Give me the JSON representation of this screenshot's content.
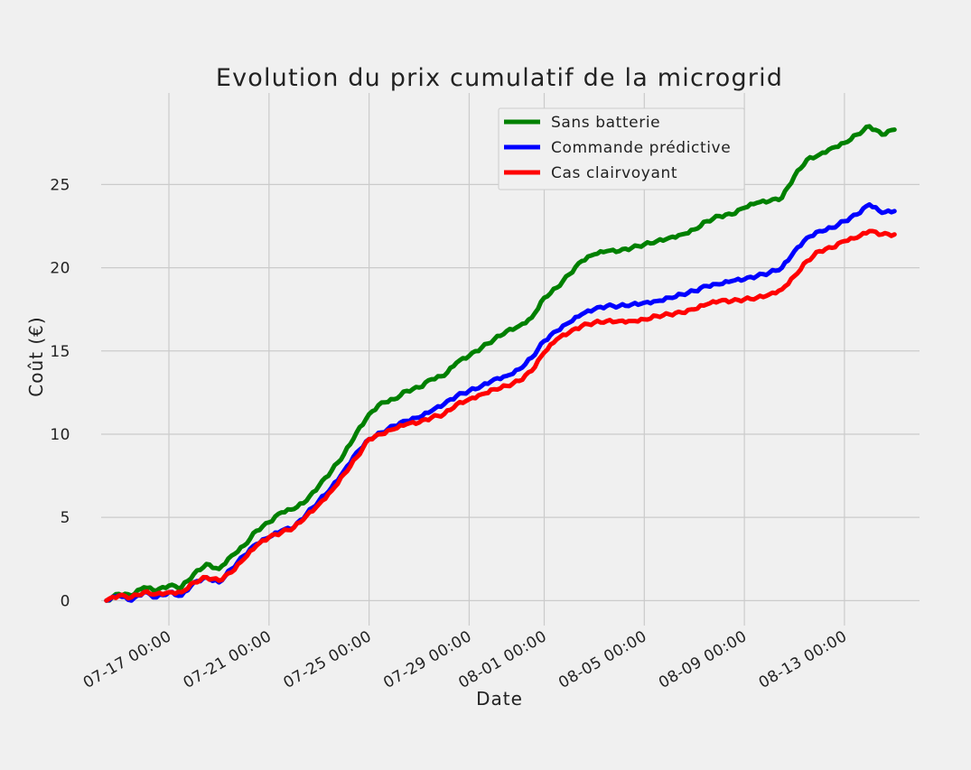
{
  "chart_data": {
    "type": "line",
    "title": "Evolution du prix cumulatif de la microgrid",
    "xlabel": "Date",
    "ylabel": "Coût (€)",
    "x_unit": "date",
    "xlim": [
      "2023-07-14T07:00",
      "2023-08-16T00:00"
    ],
    "ylim": [
      -1.5,
      30.5
    ],
    "yticks": [
      0,
      5,
      10,
      15,
      20,
      25
    ],
    "xticks": [
      {
        "date": "2023-07-17T00:00",
        "label": "07-17 00:00"
      },
      {
        "date": "2023-07-21T00:00",
        "label": "07-21 00:00"
      },
      {
        "date": "2023-07-25T00:00",
        "label": "07-25 00:00"
      },
      {
        "date": "2023-07-29T00:00",
        "label": "07-29 00:00"
      },
      {
        "date": "2023-08-01T00:00",
        "label": "08-01 00:00"
      },
      {
        "date": "2023-08-05T00:00",
        "label": "08-05 00:00"
      },
      {
        "date": "2023-08-09T00:00",
        "label": "08-09 00:00"
      },
      {
        "date": "2023-08-13T00:00",
        "label": "08-13 00:00"
      }
    ],
    "grid": true,
    "legend_position": "top-right",
    "x": [
      "2023-07-14T12:00",
      "2023-07-15T00:00",
      "2023-07-15T12:00",
      "2023-07-16T00:00",
      "2023-07-16T12:00",
      "2023-07-17T00:00",
      "2023-07-17T12:00",
      "2023-07-18T00:00",
      "2023-07-18T12:00",
      "2023-07-19T00:00",
      "2023-07-19T12:00",
      "2023-07-20T00:00",
      "2023-07-20T12:00",
      "2023-07-21T00:00",
      "2023-07-21T12:00",
      "2023-07-22T00:00",
      "2023-07-22T12:00",
      "2023-07-23T00:00",
      "2023-07-23T12:00",
      "2023-07-24T00:00",
      "2023-07-24T12:00",
      "2023-07-25T00:00",
      "2023-07-25T12:00",
      "2023-07-26T00:00",
      "2023-07-26T12:00",
      "2023-07-27T00:00",
      "2023-07-27T12:00",
      "2023-07-28T00:00",
      "2023-07-28T12:00",
      "2023-07-29T00:00",
      "2023-07-29T12:00",
      "2023-07-30T00:00",
      "2023-07-30T12:00",
      "2023-07-31T00:00",
      "2023-07-31T12:00",
      "2023-08-01T00:00",
      "2023-08-01T12:00",
      "2023-08-02T00:00",
      "2023-08-02T12:00",
      "2023-08-03T00:00",
      "2023-08-03T12:00",
      "2023-08-04T00:00",
      "2023-08-04T12:00",
      "2023-08-05T00:00",
      "2023-08-05T12:00",
      "2023-08-06T00:00",
      "2023-08-06T12:00",
      "2023-08-07T00:00",
      "2023-08-07T12:00",
      "2023-08-08T00:00",
      "2023-08-08T12:00",
      "2023-08-09T00:00",
      "2023-08-09T12:00",
      "2023-08-10T00:00",
      "2023-08-10T12:00",
      "2023-08-11T00:00",
      "2023-08-11T12:00",
      "2023-08-12T00:00",
      "2023-08-12T12:00",
      "2023-08-13T00:00",
      "2023-08-13T12:00",
      "2023-08-14T00:00",
      "2023-08-14T12:00",
      "2023-08-15T00:00"
    ],
    "series": [
      {
        "name": "Sans batterie",
        "color": "#008000",
        "values": [
          0.0,
          0.4,
          0.3,
          0.8,
          0.6,
          0.9,
          0.8,
          1.6,
          2.2,
          1.9,
          2.7,
          3.3,
          4.2,
          4.7,
          5.3,
          5.5,
          6.0,
          6.9,
          7.8,
          8.8,
          10.1,
          11.2,
          11.9,
          12.1,
          12.6,
          12.8,
          13.3,
          13.5,
          14.3,
          14.7,
          15.2,
          15.7,
          16.2,
          16.5,
          17.0,
          18.2,
          18.8,
          19.6,
          20.4,
          20.8,
          21.0,
          21.0,
          21.2,
          21.4,
          21.6,
          21.8,
          22.0,
          22.3,
          22.8,
          23.1,
          23.2,
          23.6,
          23.9,
          24.0,
          24.2,
          25.5,
          26.5,
          26.8,
          27.2,
          27.5,
          28.0,
          28.5,
          28.0,
          28.3
        ]
      },
      {
        "name": "Commande prédictive",
        "color": "#0000ff",
        "values": [
          0.0,
          0.3,
          0.0,
          0.5,
          0.2,
          0.5,
          0.3,
          1.1,
          1.4,
          1.1,
          1.9,
          2.7,
          3.4,
          3.8,
          4.2,
          4.4,
          5.2,
          6.0,
          6.8,
          7.8,
          8.9,
          9.7,
          10.1,
          10.5,
          10.8,
          11.0,
          11.4,
          11.8,
          12.3,
          12.6,
          12.9,
          13.3,
          13.5,
          13.9,
          14.6,
          15.6,
          16.2,
          16.7,
          17.2,
          17.5,
          17.7,
          17.7,
          17.8,
          17.9,
          18.0,
          18.2,
          18.4,
          18.6,
          18.9,
          19.0,
          19.2,
          19.3,
          19.5,
          19.7,
          20.0,
          21.0,
          21.8,
          22.2,
          22.4,
          22.8,
          23.2,
          23.8,
          23.3,
          23.4
        ]
      },
      {
        "name": "Cas clairvoyant",
        "color": "#ff0000",
        "values": [
          0.0,
          0.3,
          0.2,
          0.5,
          0.4,
          0.5,
          0.5,
          1.1,
          1.4,
          1.2,
          1.7,
          2.5,
          3.3,
          3.8,
          4.1,
          4.4,
          5.1,
          5.8,
          6.6,
          7.6,
          8.6,
          9.7,
          10.0,
          10.3,
          10.6,
          10.7,
          11.0,
          11.2,
          11.8,
          12.1,
          12.4,
          12.7,
          12.9,
          13.2,
          13.8,
          14.9,
          15.7,
          16.1,
          16.5,
          16.7,
          16.8,
          16.8,
          16.8,
          16.9,
          17.1,
          17.2,
          17.3,
          17.5,
          17.8,
          18.0,
          18.0,
          18.1,
          18.2,
          18.4,
          18.7,
          19.5,
          20.4,
          21.0,
          21.2,
          21.6,
          21.8,
          22.2,
          22.0,
          22.0
        ]
      }
    ]
  }
}
